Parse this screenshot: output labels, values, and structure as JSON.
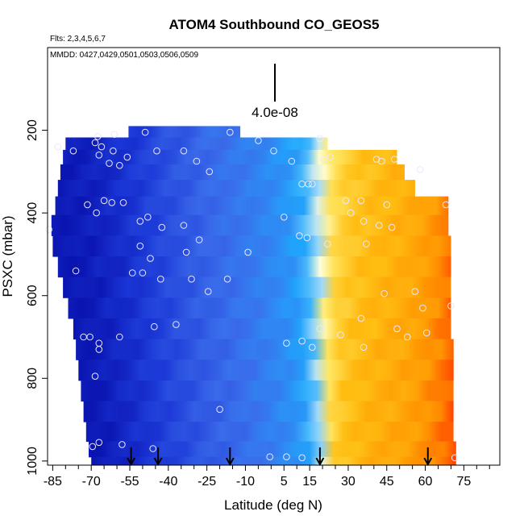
{
  "chart_data": {
    "type": "heatmap",
    "title": "ATOM4 Southbound CO_GEOS5",
    "flights_label": "Flts: 2,3,4,5,6,7",
    "dates_label": "MMDD: 0427,0429,0501,0503,0506,0509",
    "scale_label": "4.0e-08",
    "xlabel": "Latitude (deg N)",
    "ylabel": "PSXC (mbar)",
    "xlim": [
      -87,
      89
    ],
    "ylim": [
      1010,
      0
    ],
    "x_ticks": [
      -85,
      -70,
      -55,
      -40,
      -25,
      -10,
      5,
      15,
      30,
      45,
      60,
      75
    ],
    "x_tick_labels": [
      "-85",
      "-70",
      "-55",
      "-40",
      "-25",
      "-10",
      "5",
      "15",
      "30",
      "45",
      "60",
      "75"
    ],
    "x_minor_ticks": [
      -80,
      -75,
      -65,
      -60,
      -50,
      -45,
      -35,
      -30,
      -20,
      -15,
      -5,
      0,
      10,
      20,
      25,
      35,
      40,
      50,
      55,
      65,
      70,
      80,
      85
    ],
    "y_ticks": [
      200,
      400,
      600,
      800,
      1000
    ],
    "y_tick_labels": [
      "200",
      "400",
      "600",
      "800",
      "1000"
    ],
    "color_gradient": [
      {
        "v": 0.0,
        "c": "#0a14b0"
      },
      {
        "v": 0.12,
        "c": "#1a36d6"
      },
      {
        "v": 0.27,
        "c": "#3a6aea"
      },
      {
        "v": 0.38,
        "c": "#2e8cf4"
      },
      {
        "v": 0.45,
        "c": "#1ea8fc"
      },
      {
        "v": 0.52,
        "c": "#9ed8fa"
      },
      {
        "v": 0.57,
        "c": "#ffffdc"
      },
      {
        "v": 0.66,
        "c": "#ffea6a"
      },
      {
        "v": 0.78,
        "c": "#ffbe12"
      },
      {
        "v": 0.9,
        "c": "#ff9400"
      },
      {
        "v": 1.0,
        "c": "#ff4000"
      }
    ],
    "profile_x": [
      -85,
      -70,
      -55,
      -40,
      -25,
      -10,
      0,
      10,
      15,
      20,
      25,
      35,
      45,
      55,
      65,
      72
    ],
    "profile_v": [
      0.02,
      0.05,
      0.12,
      0.2,
      0.27,
      0.33,
      0.38,
      0.44,
      0.5,
      0.58,
      0.7,
      0.76,
      0.79,
      0.82,
      0.88,
      0.94
    ],
    "coverage": [
      {
        "p": 205,
        "lo": -55.5,
        "hi": -12
      },
      {
        "p": 230,
        "lo": -80,
        "hi": 22
      },
      {
        "p": 265,
        "lo": -81,
        "hi": 49
      },
      {
        "p": 300,
        "lo": -82,
        "hi": 52
      },
      {
        "p": 340,
        "lo": -83,
        "hi": 56
      },
      {
        "p": 380,
        "lo": -84,
        "hi": 69
      },
      {
        "p": 430,
        "lo": -85.5,
        "hi": 69
      },
      {
        "p": 480,
        "lo": -85,
        "hi": 70
      },
      {
        "p": 530,
        "lo": -83,
        "hi": 70
      },
      {
        "p": 580,
        "lo": -81,
        "hi": 70
      },
      {
        "p": 630,
        "lo": -79,
        "hi": 70
      },
      {
        "p": 680,
        "lo": -77,
        "hi": 70
      },
      {
        "p": 730,
        "lo": -76,
        "hi": 71
      },
      {
        "p": 780,
        "lo": -75,
        "hi": 71
      },
      {
        "p": 830,
        "lo": -74,
        "hi": 71
      },
      {
        "p": 880,
        "lo": -73,
        "hi": 71
      },
      {
        "p": 930,
        "lo": -72,
        "hi": 71
      },
      {
        "p": 975,
        "lo": -71,
        "hi": 72
      },
      {
        "p": 1005,
        "lo": -70,
        "hi": 72
      }
    ],
    "samples": [
      {
        "lat": -86.5,
        "p": 440
      },
      {
        "lat": -83,
        "p": 240
      },
      {
        "lat": -77,
        "p": 250
      },
      {
        "lat": -67.5,
        "p": 215
      },
      {
        "lat": -68.5,
        "p": 230
      },
      {
        "lat": -66,
        "p": 240
      },
      {
        "lat": -67,
        "p": 260
      },
      {
        "lat": -63,
        "p": 280
      },
      {
        "lat": -61.5,
        "p": 250
      },
      {
        "lat": -61,
        "p": 210
      },
      {
        "lat": -59,
        "p": 285
      },
      {
        "lat": -56,
        "p": 265
      },
      {
        "lat": -65,
        "p": 370
      },
      {
        "lat": -62,
        "p": 375
      },
      {
        "lat": -57.5,
        "p": 375
      },
      {
        "lat": -71.5,
        "p": 380
      },
      {
        "lat": -68,
        "p": 400
      },
      {
        "lat": -51,
        "p": 420
      },
      {
        "lat": -48,
        "p": 410
      },
      {
        "lat": -49,
        "p": 205
      },
      {
        "lat": -44.5,
        "p": 250
      },
      {
        "lat": -34,
        "p": 250
      },
      {
        "lat": -29,
        "p": 275
      },
      {
        "lat": -24,
        "p": 300
      },
      {
        "lat": -16,
        "p": 205
      },
      {
        "lat": -5,
        "p": 225
      },
      {
        "lat": 1,
        "p": 250
      },
      {
        "lat": 8,
        "p": 275
      },
      {
        "lat": 19,
        "p": 220
      },
      {
        "lat": 12,
        "p": 330
      },
      {
        "lat": 14.5,
        "p": 330
      },
      {
        "lat": 16,
        "p": 330
      },
      {
        "lat": 20.5,
        "p": 270
      },
      {
        "lat": 23,
        "p": 265
      },
      {
        "lat": 41,
        "p": 270
      },
      {
        "lat": 43,
        "p": 275
      },
      {
        "lat": 48,
        "p": 270
      },
      {
        "lat": 58,
        "p": 295
      },
      {
        "lat": 68,
        "p": 380
      },
      {
        "lat": 29,
        "p": 370
      },
      {
        "lat": 35,
        "p": 370
      },
      {
        "lat": 45,
        "p": 380
      },
      {
        "lat": 31,
        "p": 400
      },
      {
        "lat": 36,
        "p": 420
      },
      {
        "lat": 37,
        "p": 475
      },
      {
        "lat": 42,
        "p": 430
      },
      {
        "lat": 47,
        "p": 435
      },
      {
        "lat": 5,
        "p": 410
      },
      {
        "lat": 11,
        "p": 455
      },
      {
        "lat": 14,
        "p": 460
      },
      {
        "lat": 22,
        "p": 475
      },
      {
        "lat": -51,
        "p": 480
      },
      {
        "lat": -42.5,
        "p": 435
      },
      {
        "lat": -34,
        "p": 430
      },
      {
        "lat": -28,
        "p": 465
      },
      {
        "lat": -33,
        "p": 495
      },
      {
        "lat": -47,
        "p": 510
      },
      {
        "lat": -9,
        "p": 495
      },
      {
        "lat": -76,
        "p": 540
      },
      {
        "lat": -54,
        "p": 545
      },
      {
        "lat": -50,
        "p": 545
      },
      {
        "lat": -43,
        "p": 560
      },
      {
        "lat": -31,
        "p": 560
      },
      {
        "lat": -17,
        "p": 560
      },
      {
        "lat": -24.5,
        "p": 590
      },
      {
        "lat": 44,
        "p": 595
      },
      {
        "lat": 56,
        "p": 590
      },
      {
        "lat": 59,
        "p": 630
      },
      {
        "lat": 70,
        "p": 625
      },
      {
        "lat": 35,
        "p": 655
      },
      {
        "lat": 49,
        "p": 680
      },
      {
        "lat": 53,
        "p": 700
      },
      {
        "lat": 60.5,
        "p": 690
      },
      {
        "lat": 27,
        "p": 695
      },
      {
        "lat": 19,
        "p": 680
      },
      {
        "lat": -45.5,
        "p": 675
      },
      {
        "lat": -37,
        "p": 670
      },
      {
        "lat": -73,
        "p": 700
      },
      {
        "lat": -70.5,
        "p": 700
      },
      {
        "lat": -67,
        "p": 715
      },
      {
        "lat": -67,
        "p": 730
      },
      {
        "lat": -59,
        "p": 700
      },
      {
        "lat": -68.5,
        "p": 795
      },
      {
        "lat": 6,
        "p": 715
      },
      {
        "lat": 12,
        "p": 710
      },
      {
        "lat": 16,
        "p": 725
      },
      {
        "lat": 36,
        "p": 725
      },
      {
        "lat": -20,
        "p": 875
      },
      {
        "lat": -67,
        "p": 955
      },
      {
        "lat": -69.5,
        "p": 965
      },
      {
        "lat": -58,
        "p": 960
      },
      {
        "lat": -46,
        "p": 970
      },
      {
        "lat": -0.5,
        "p": 990
      },
      {
        "lat": 6,
        "p": 990
      },
      {
        "lat": 12,
        "p": 992
      },
      {
        "lat": 71.5,
        "p": 992
      }
    ],
    "arrow_lats": [
      -54.5,
      -44,
      -16,
      19,
      61
    ]
  }
}
